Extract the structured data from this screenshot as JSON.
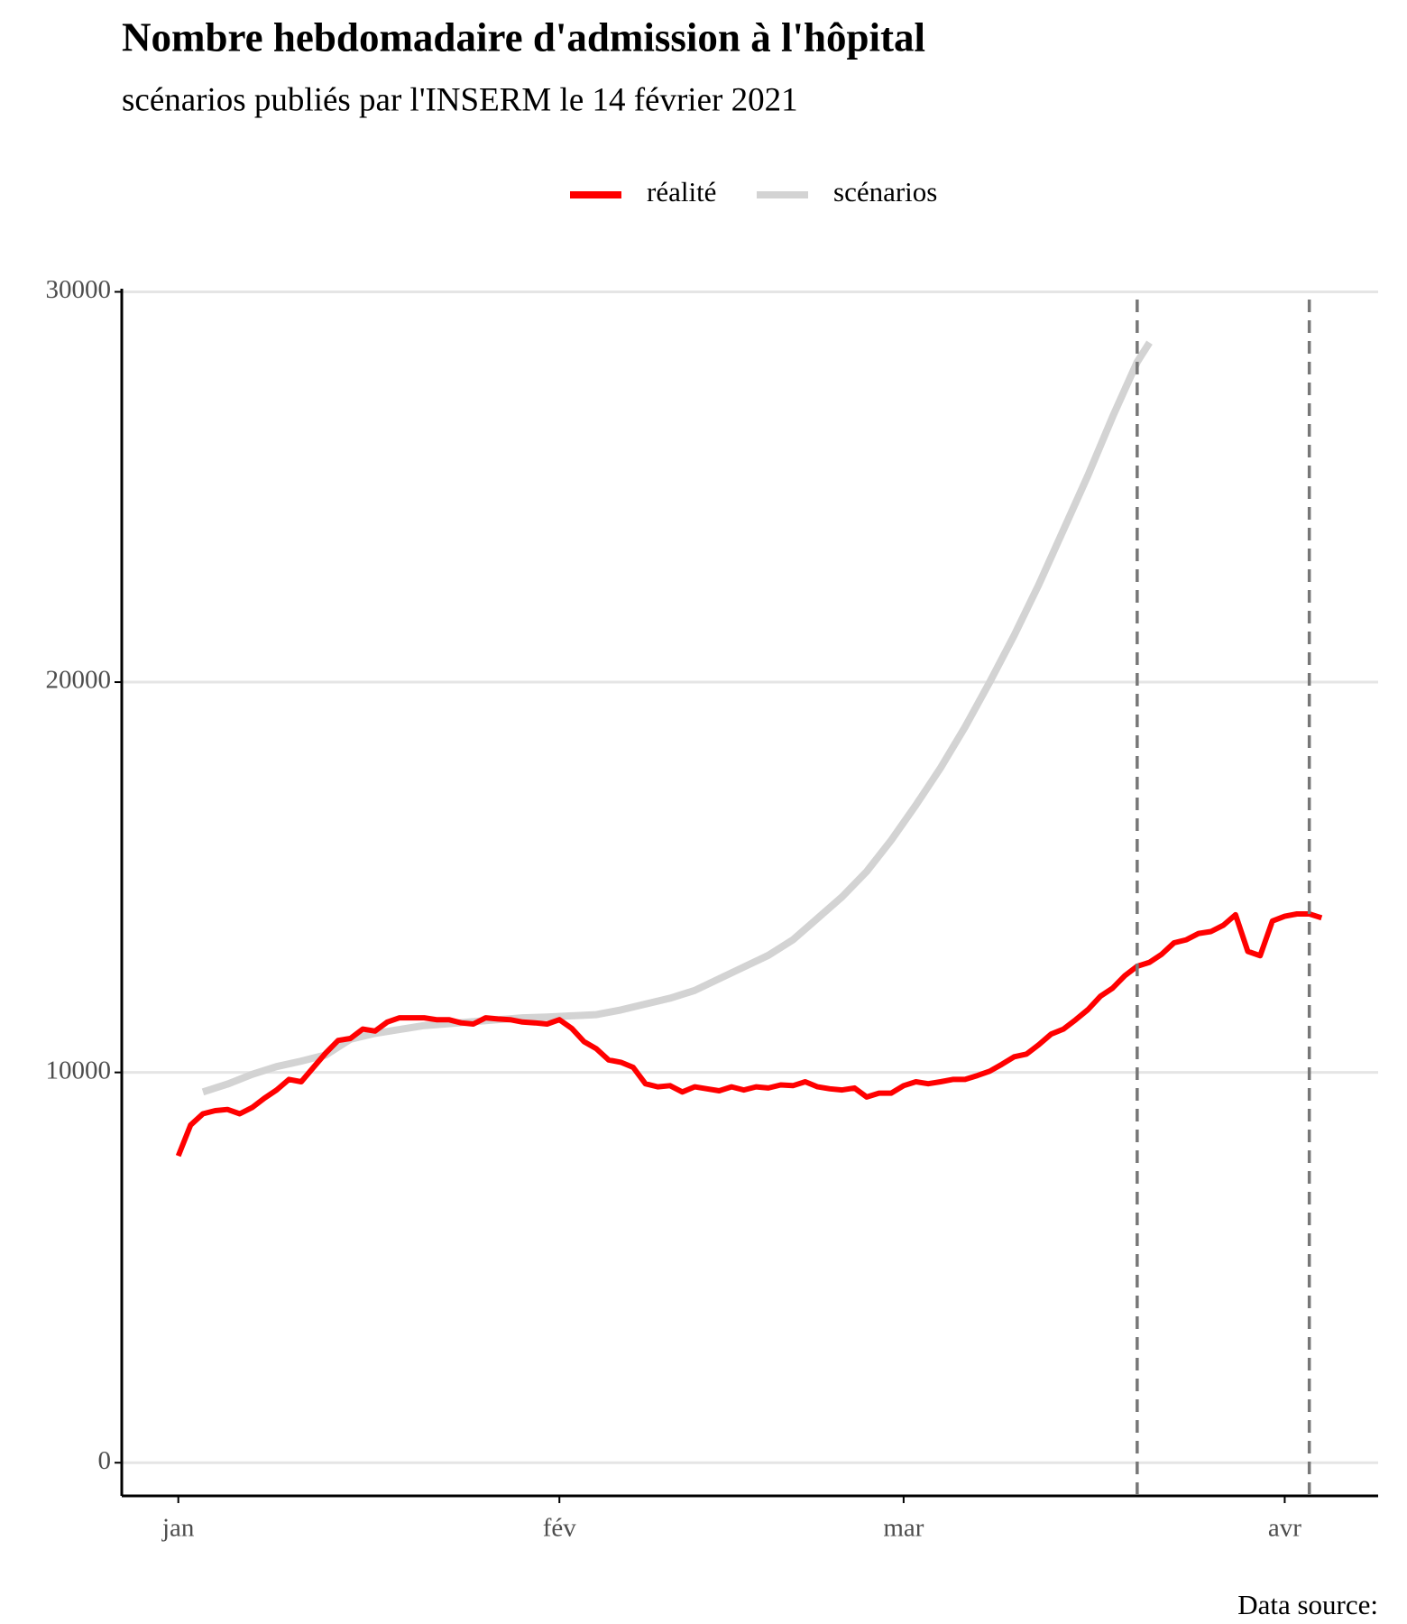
{
  "chart_data": {
    "type": "line",
    "title": "Nombre hebdomadaire d'admission à l'hôpital",
    "subtitle": "scénarios publiés par l'INSERM le 14 février 2021",
    "caption": "Data source:",
    "xlim": [
      -4.6,
      97.6
    ],
    "xticks": [
      {
        "value": 0,
        "label": "jan"
      },
      {
        "value": 31,
        "label": "fév"
      },
      {
        "value": 59,
        "label": "mar"
      },
      {
        "value": 90,
        "label": "avr"
      }
    ],
    "ylim": [
      -850,
      30080
    ],
    "yticks": [
      0,
      10000,
      20000,
      30000
    ],
    "grid": true,
    "legend": "top",
    "vlines": [
      78,
      92
    ],
    "series": [
      {
        "name": "réalité",
        "color": "#ff0000",
        "x": [
          0,
          1,
          2,
          3,
          4,
          5,
          6,
          7,
          8,
          9,
          10,
          11,
          12,
          13,
          14,
          15,
          16,
          17,
          18,
          19,
          20,
          21,
          22,
          23,
          24,
          25,
          26,
          27,
          28,
          29,
          30,
          31,
          32,
          33,
          34,
          35,
          36,
          37,
          38,
          39,
          40,
          41,
          42,
          43,
          44,
          45,
          46,
          47,
          48,
          49,
          50,
          51,
          52,
          53,
          54,
          55,
          56,
          57,
          58,
          59,
          60,
          61,
          62,
          63,
          64,
          65,
          66,
          67,
          68,
          69,
          70,
          71,
          72,
          73,
          74,
          75,
          76,
          77,
          78,
          79,
          80,
          81,
          82,
          83,
          84,
          85,
          86,
          87,
          88,
          89,
          90,
          91,
          92,
          93
        ],
        "values": [
          7860,
          8650,
          8940,
          9020,
          9050,
          8940,
          9100,
          9340,
          9550,
          9820,
          9760,
          10130,
          10500,
          10820,
          10870,
          11110,
          11060,
          11290,
          11400,
          11400,
          11400,
          11350,
          11350,
          11270,
          11240,
          11400,
          11370,
          11350,
          11290,
          11270,
          11240,
          11350,
          11130,
          10790,
          10610,
          10320,
          10260,
          10130,
          9710,
          9630,
          9660,
          9500,
          9630,
          9580,
          9530,
          9630,
          9550,
          9630,
          9600,
          9680,
          9660,
          9760,
          9630,
          9580,
          9550,
          9600,
          9370,
          9470,
          9470,
          9660,
          9760,
          9710,
          9760,
          9820,
          9820,
          9920,
          10030,
          10210,
          10400,
          10470,
          10710,
          10980,
          11110,
          11350,
          11610,
          11950,
          12160,
          12480,
          12720,
          12820,
          13030,
          13320,
          13400,
          13560,
          13610,
          13770,
          14040,
          13100,
          12990,
          13880,
          14000,
          14060,
          14060,
          13960
        ]
      },
      {
        "name": "scénarios",
        "color": "#d3d3d3",
        "x": [
          2,
          4,
          6,
          8,
          10,
          12,
          14,
          16,
          18,
          20,
          22,
          24,
          26,
          28,
          30,
          32,
          34,
          36,
          38,
          40,
          42,
          44,
          46,
          48,
          50,
          52,
          54,
          56,
          58,
          60,
          62,
          64,
          66,
          68,
          70,
          72,
          74,
          76,
          78,
          79
        ],
        "values": [
          9500,
          9700,
          9950,
          10150,
          10290,
          10450,
          10850,
          11000,
          11100,
          11200,
          11250,
          11300,
          11350,
          11400,
          11420,
          11450,
          11480,
          11600,
          11750,
          11900,
          12100,
          12400,
          12700,
          13000,
          13400,
          13950,
          14500,
          15150,
          15950,
          16850,
          17800,
          18850,
          20000,
          21200,
          22500,
          23900,
          25300,
          26800,
          28200,
          28700
        ]
      }
    ]
  }
}
